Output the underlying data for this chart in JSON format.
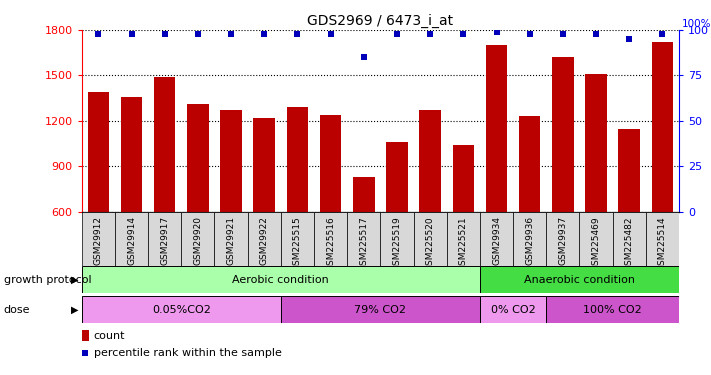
{
  "title": "GDS2969 / 6473_i_at",
  "sample_labels": [
    "GSM29912",
    "GSM29914",
    "GSM29917",
    "GSM29920",
    "GSM29921",
    "GSM29922",
    "GSM225515",
    "GSM225516",
    "GSM225517",
    "GSM225519",
    "GSM225520",
    "GSM225521",
    "GSM29934",
    "GSM29936",
    "GSM29937",
    "GSM225469",
    "GSM225482",
    "GSM225514"
  ],
  "counts": [
    1390,
    1360,
    1490,
    1310,
    1270,
    1220,
    1290,
    1240,
    830,
    1060,
    1270,
    1040,
    1700,
    1230,
    1620,
    1510,
    1150,
    1720
  ],
  "percentile_ranks": [
    98,
    98,
    98,
    98,
    98,
    98,
    98,
    98,
    85,
    98,
    98,
    98,
    99,
    98,
    98,
    98,
    95,
    98
  ],
  "ylim_left": [
    600,
    1800
  ],
  "ylim_right": [
    0,
    100
  ],
  "yticks_left": [
    600,
    900,
    1200,
    1500,
    1800
  ],
  "yticks_right": [
    0,
    25,
    50,
    75,
    100
  ],
  "bar_color": "#bb0000",
  "dot_color": "#0000bb",
  "background_color": "#ffffff",
  "growth_protocol_label": "growth protocol",
  "dose_label": "dose",
  "aerobic_label": "Aerobic condition",
  "anaerobic_label": "Anaerobic condition",
  "aerobic_color": "#aaffaa",
  "anaerobic_color": "#44dd44",
  "dose_labels": [
    "0.05%CO2",
    "79% CO2",
    "0% CO2",
    "100% CO2"
  ],
  "dose_colors": [
    "#ee99ee",
    "#cc55cc",
    "#ee99ee",
    "#cc55cc"
  ],
  "legend_count_label": "count",
  "legend_pct_label": "percentile rank within the sample",
  "aerobic_samples_count": 12,
  "anaerobic_samples_count": 6,
  "dose_sample_counts": [
    6,
    6,
    2,
    4
  ]
}
